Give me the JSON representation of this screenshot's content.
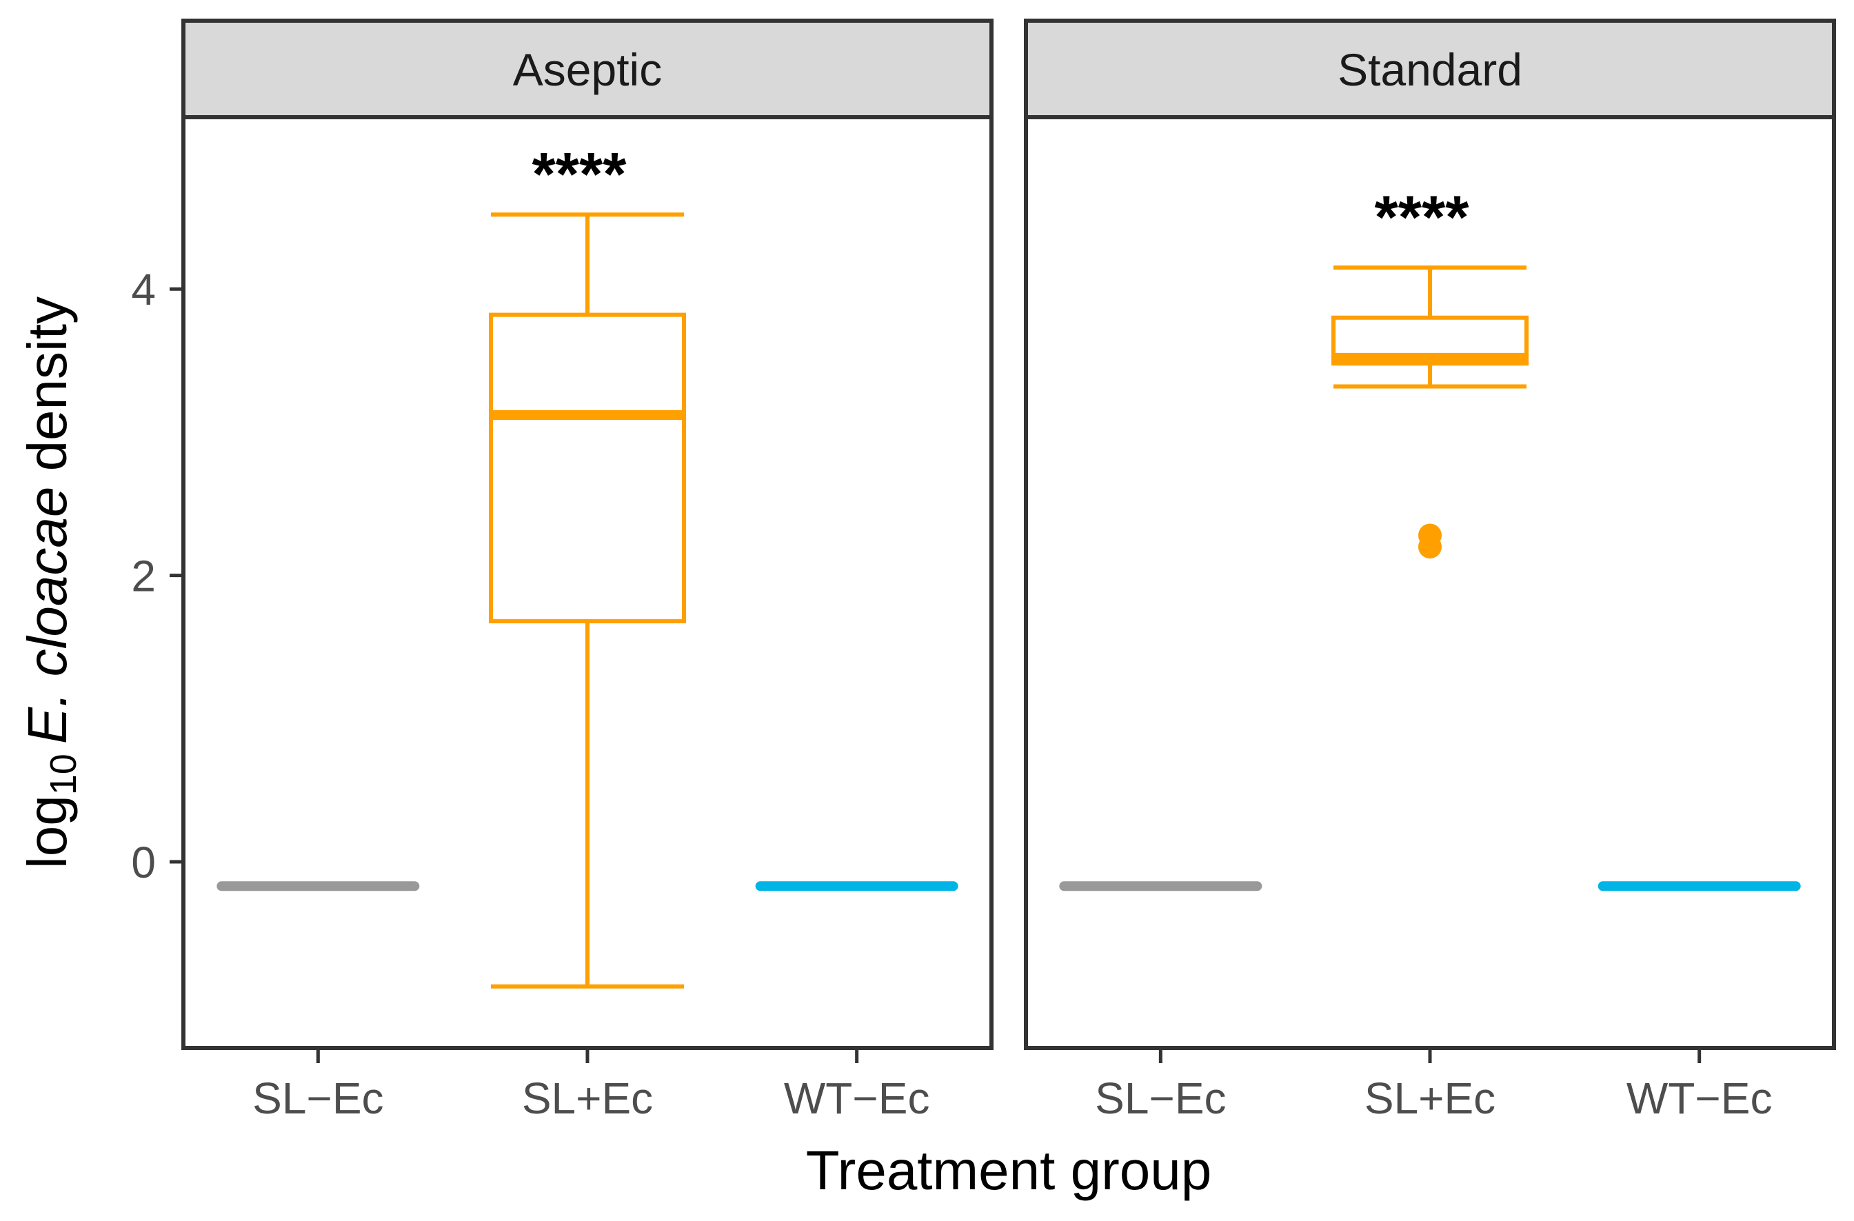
{
  "chart_data": {
    "type": "box",
    "facet_variable": "condition",
    "x_label": "Treatment group",
    "y_label_parts": {
      "prefix": "log",
      "subscript": "10",
      "italic": "E. cloacae",
      "suffix": " density"
    },
    "categories": [
      "SL−Ec",
      "SL+Ec",
      "WT−Ec"
    ],
    "y_ticks": [
      0,
      2,
      4
    ],
    "ylim": [
      -1.3,
      5.2
    ],
    "colors": {
      "SL−Ec": "#999999",
      "SL+Ec": "#FF9F00",
      "WT−Ec": "#00B4E6"
    },
    "panels": [
      {
        "title": "Aseptic",
        "boxes": [
          {
            "category": "SL−Ec",
            "min": -0.17,
            "q1": -0.17,
            "median": -0.17,
            "q3": -0.17,
            "max": -0.17,
            "outliers": []
          },
          {
            "category": "SL+Ec",
            "min": -0.87,
            "q1": 1.68,
            "median": 3.12,
            "q3": 3.82,
            "max": 4.52,
            "outliers": []
          },
          {
            "category": "WT−Ec",
            "min": -0.17,
            "q1": -0.17,
            "median": -0.17,
            "q3": -0.17,
            "max": -0.17,
            "outliers": []
          }
        ],
        "annotation": {
          "category": "SL+Ec",
          "text": "****",
          "y": 4.85
        }
      },
      {
        "title": "Standard",
        "boxes": [
          {
            "category": "SL−Ec",
            "min": -0.17,
            "q1": -0.17,
            "median": -0.17,
            "q3": -0.17,
            "max": -0.17,
            "outliers": []
          },
          {
            "category": "SL+Ec",
            "min": 3.32,
            "q1": 3.48,
            "median": 3.52,
            "q3": 3.8,
            "max": 4.15,
            "outliers": [
              2.28,
              2.2
            ]
          },
          {
            "category": "WT−Ec",
            "min": -0.17,
            "q1": -0.17,
            "median": -0.17,
            "q3": -0.17,
            "max": -0.17,
            "outliers": []
          }
        ],
        "annotation": {
          "category": "SL+Ec",
          "text": "****",
          "y": 4.55
        }
      }
    ]
  }
}
